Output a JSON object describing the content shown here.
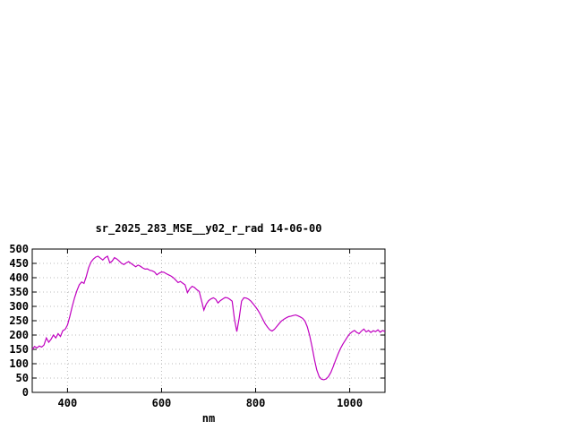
{
  "page": {
    "background": "#ffffff"
  },
  "chart_data": {
    "type": "line",
    "title": "sr_2025_283_MSE__y02_r_rad 14-06-00",
    "xlabel": "nm",
    "ylabel": "",
    "xlim": [
      325,
      1075
    ],
    "ylim": [
      0,
      500
    ],
    "xticks": [
      400,
      600,
      800,
      1000
    ],
    "yticks": [
      0,
      50,
      100,
      150,
      200,
      250,
      300,
      350,
      400,
      450,
      500
    ],
    "grid": true,
    "legend": "none",
    "colors": {
      "line": "#c000c0",
      "grid": "#bbbbbb",
      "border": "#000000",
      "text": "#000000",
      "background": "#ffffff"
    },
    "series": [
      {
        "name": "sr_2025_283_MSE__y02_r_rad",
        "x": [
          325,
          330,
          335,
          340,
          345,
          350,
          355,
          360,
          365,
          370,
          375,
          380,
          385,
          390,
          395,
          400,
          405,
          410,
          415,
          420,
          425,
          430,
          435,
          440,
          445,
          450,
          455,
          460,
          465,
          470,
          475,
          480,
          485,
          490,
          495,
          500,
          505,
          510,
          515,
          520,
          525,
          530,
          535,
          540,
          545,
          550,
          555,
          560,
          565,
          570,
          575,
          580,
          585,
          590,
          595,
          600,
          605,
          610,
          615,
          620,
          625,
          630,
          635,
          640,
          645,
          650,
          655,
          660,
          665,
          670,
          675,
          680,
          685,
          690,
          695,
          700,
          705,
          710,
          715,
          720,
          725,
          730,
          735,
          740,
          745,
          750,
          755,
          760,
          765,
          770,
          775,
          780,
          785,
          790,
          795,
          800,
          805,
          810,
          815,
          820,
          825,
          830,
          835,
          840,
          845,
          850,
          855,
          860,
          865,
          870,
          875,
          880,
          885,
          890,
          895,
          900,
          905,
          910,
          915,
          920,
          925,
          930,
          935,
          940,
          945,
          950,
          955,
          960,
          965,
          970,
          975,
          980,
          985,
          990,
          995,
          1000,
          1005,
          1010,
          1015,
          1020,
          1025,
          1030,
          1035,
          1040,
          1045,
          1050,
          1055,
          1060,
          1065,
          1070,
          1075
        ],
        "y": [
          150,
          160,
          155,
          162,
          158,
          165,
          190,
          175,
          185,
          200,
          190,
          205,
          195,
          215,
          220,
          235,
          265,
          300,
          330,
          355,
          375,
          385,
          380,
          405,
          435,
          455,
          465,
          472,
          475,
          468,
          462,
          470,
          475,
          452,
          458,
          470,
          465,
          458,
          450,
          446,
          452,
          456,
          450,
          444,
          438,
          444,
          440,
          434,
          430,
          431,
          426,
          424,
          420,
          410,
          416,
          420,
          419,
          414,
          410,
          406,
          400,
          392,
          383,
          387,
          381,
          375,
          348,
          362,
          370,
          366,
          358,
          352,
          320,
          287,
          308,
          320,
          326,
          330,
          325,
          312,
          320,
          326,
          331,
          330,
          325,
          318,
          255,
          212,
          258,
          318,
          330,
          329,
          325,
          318,
          308,
          298,
          286,
          272,
          256,
          240,
          228,
          218,
          214,
          220,
          230,
          240,
          249,
          255,
          260,
          264,
          266,
          268,
          270,
          267,
          263,
          258,
          248,
          228,
          198,
          158,
          115,
          78,
          55,
          46,
          44,
          47,
          56,
          70,
          90,
          112,
          133,
          152,
          167,
          180,
          193,
          204,
          211,
          216,
          209,
          205,
          214,
          221,
          211,
          216,
          209,
          215,
          212,
          218,
          210,
          216,
          212
        ]
      }
    ]
  }
}
